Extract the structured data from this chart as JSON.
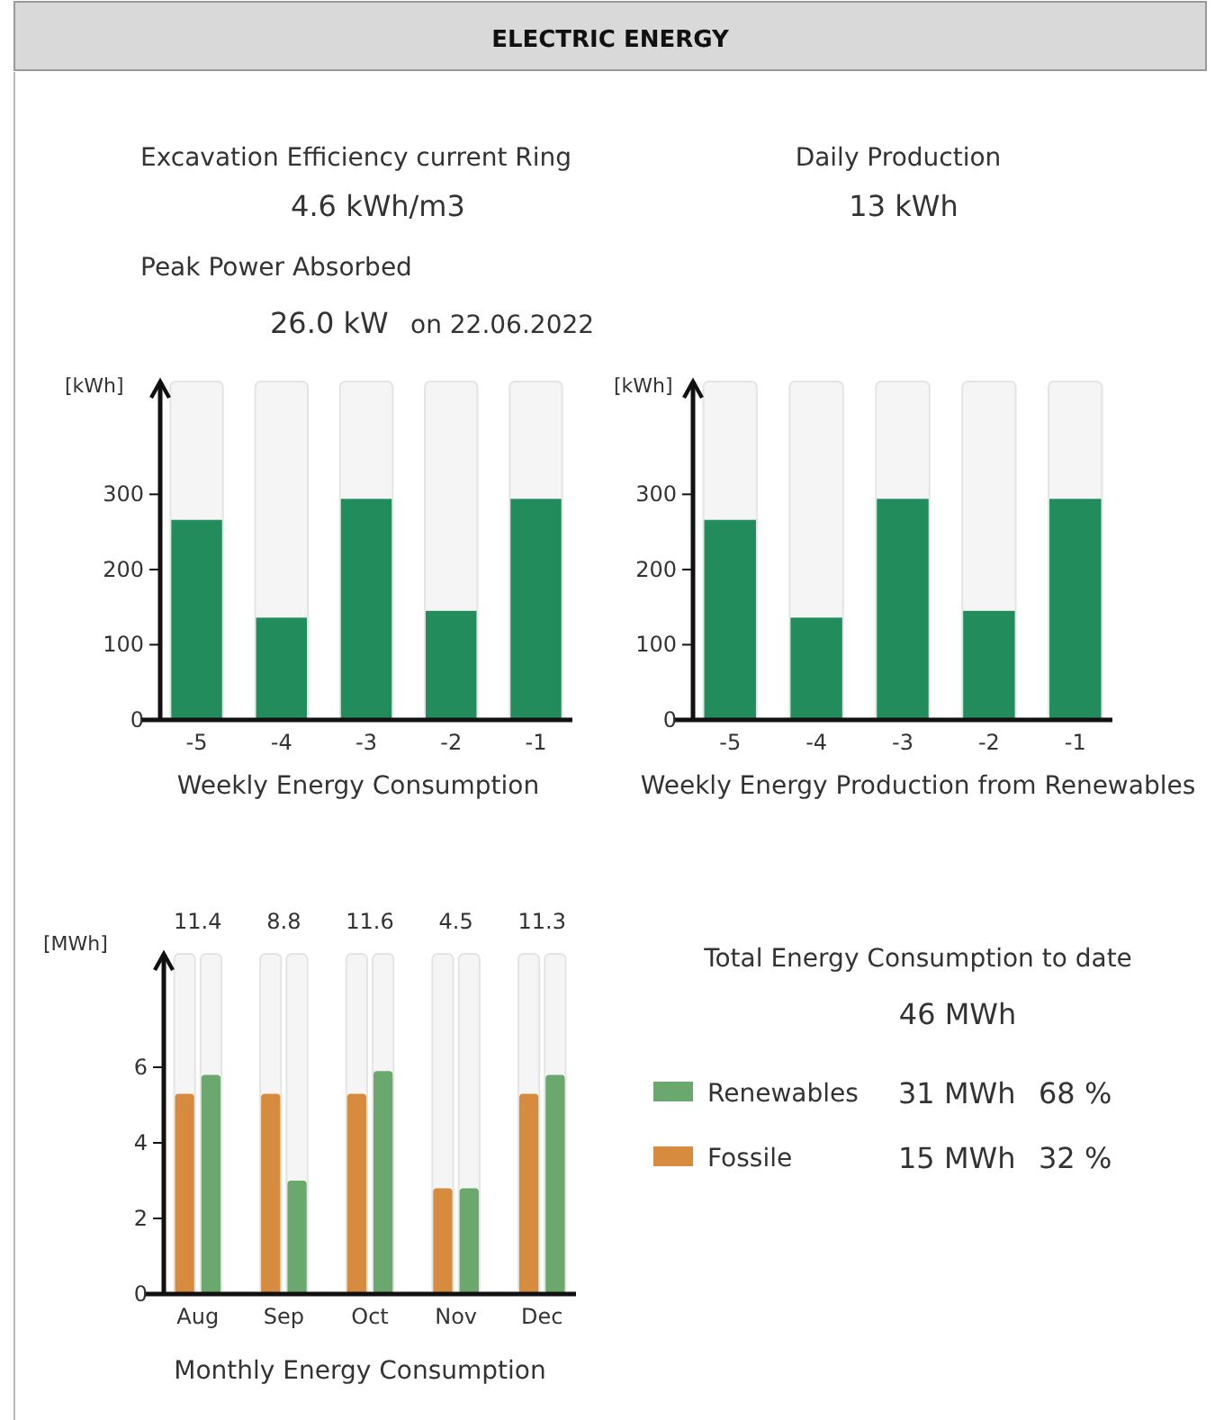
{
  "chart_data": [
    {
      "type": "other",
      "title": "ELECTRIC ENERGY",
      "annotations": [
        "Excavation Efficiency current Ring",
        "4.6 kWh/m3",
        "Peak Power Absorbed",
        "26.0 kW",
        "on 22.06.2022",
        "Daily Production",
        "13 kWh"
      ]
    },
    {
      "type": "bar",
      "xlabel": "Weekly Energy Consumption",
      "ylabel": "[kWh]",
      "categories": [
        "-5",
        "-4",
        "-3",
        "-2",
        "-1"
      ],
      "values": [
        266,
        136,
        294,
        145,
        294
      ],
      "color": "#238c5c",
      "ylim": [
        0,
        450
      ],
      "yticks": [
        0,
        100,
        200,
        300
      ]
    },
    {
      "type": "bar",
      "xlabel": "Weekly Energy Production from Renewables",
      "ylabel": "[kWh]",
      "categories": [
        "-5",
        "-4",
        "-3",
        "-2",
        "-1"
      ],
      "values": [
        266,
        136,
        294,
        145,
        294
      ],
      "color": "#238c5c",
      "ylim": [
        0,
        450
      ],
      "yticks": [
        0,
        100,
        200,
        300
      ]
    },
    {
      "type": "bar",
      "xlabel": "Monthly Energy Consumption",
      "ylabel": "[MWh]",
      "categories": [
        "Aug",
        "Sep",
        "Oct",
        "Nov",
        "Dec"
      ],
      "series": [
        {
          "name": "Fossile",
          "color": "#d68b3e",
          "values": [
            5.3,
            5.3,
            5.3,
            2.8,
            5.3
          ]
        },
        {
          "name": "Renewables",
          "color": "#6aa86e",
          "values": [
            5.8,
            3.0,
            5.9,
            2.8,
            5.8
          ]
        }
      ],
      "annotations": [
        "11.4",
        "8.8",
        "11.6",
        "4.5",
        "11.3"
      ],
      "legend": "right",
      "ylim": [
        0,
        9
      ],
      "yticks": [
        0,
        2,
        4,
        6
      ]
    },
    {
      "type": "other",
      "title": "Total Energy Consumption to date",
      "annotations": [
        "46 MWh",
        "31 MWh",
        "68 %",
        "15 MWh",
        "32 %"
      ]
    }
  ]
}
